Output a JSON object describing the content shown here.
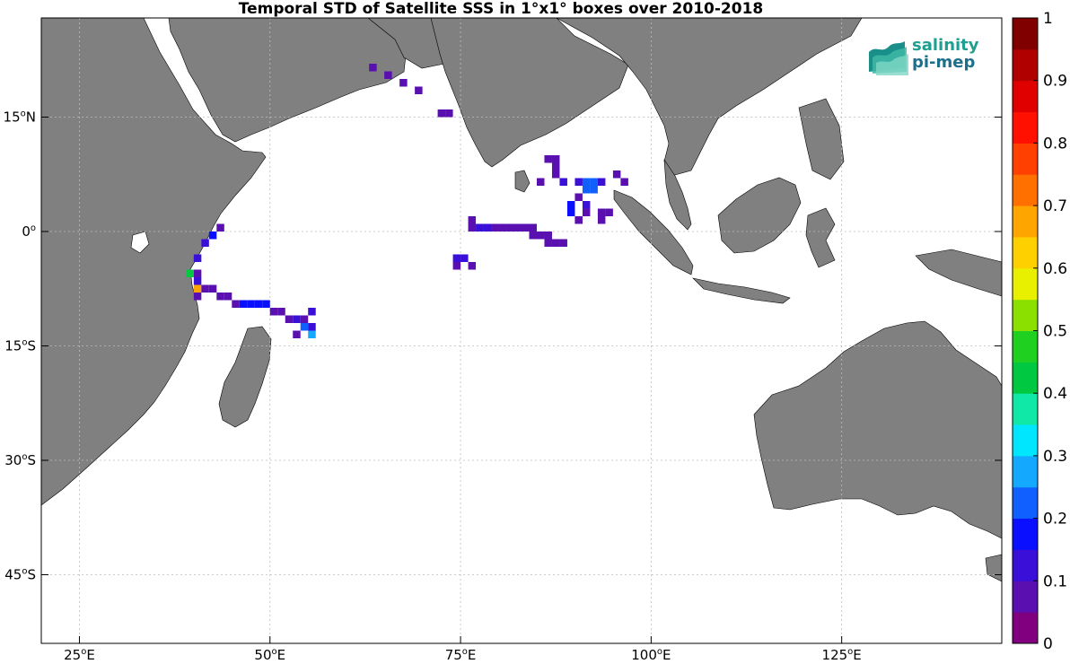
{
  "title": "Temporal STD of Satellite SSS in 1°x1° boxes over 2010-2018",
  "logo": {
    "line1": "salinity",
    "line2": "pi-mep"
  },
  "colors": {
    "land": "#808080",
    "ocean": "#ffffff",
    "grid": "#c0c0c0"
  },
  "axes": {
    "x_ticks": [
      {
        "deg": "25",
        "hemi": "E",
        "lon": 25
      },
      {
        "deg": "50",
        "hemi": "E",
        "lon": 50
      },
      {
        "deg": "75",
        "hemi": "E",
        "lon": 75
      },
      {
        "deg": "100",
        "hemi": "E",
        "lon": 100
      },
      {
        "deg": "125",
        "hemi": "E",
        "lon": 125
      }
    ],
    "y_ticks": [
      {
        "deg": "15",
        "hemi": "N",
        "lat": 15
      },
      {
        "deg": "0",
        "hemi": "",
        "lat": 0
      },
      {
        "deg": "15",
        "hemi": "S",
        "lat": -15
      },
      {
        "deg": "30",
        "hemi": "S",
        "lat": -30
      },
      {
        "deg": "45",
        "hemi": "S",
        "lat": -45
      }
    ],
    "lon_range": [
      20,
      146
    ],
    "lat_range": [
      -54,
      28
    ]
  },
  "colorbar": {
    "range": [
      0,
      1
    ],
    "ticks": [
      "0",
      "0.1",
      "0.2",
      "0.3",
      "0.4",
      "0.5",
      "0.6",
      "0.7",
      "0.8",
      "0.9",
      "1"
    ],
    "colors": [
      "#800080",
      "#5a0fb0",
      "#3a10d8",
      "#0a10ff",
      "#1060ff",
      "#14a8ff",
      "#00e6ff",
      "#10e8a8",
      "#00c840",
      "#20d020",
      "#8ce000",
      "#e8f000",
      "#ffd000",
      "#ffa500",
      "#ff7000",
      "#ff4000",
      "#ff1000",
      "#e00000",
      "#b00000",
      "#800000"
    ]
  },
  "chart_data": {
    "type": "heatmap",
    "title": "Temporal STD of Satellite SSS in 1°x1° boxes over 2010-2018",
    "value_range": [
      0,
      1
    ],
    "x_label": "",
    "y_label": "",
    "cell_size_deg": 1,
    "tracks": [
      {
        "lon": 63.5,
        "lat": 21.5,
        "std": 0.05
      },
      {
        "lon": 65.5,
        "lat": 20.5,
        "std": 0.05
      },
      {
        "lon": 67.5,
        "lat": 19.5,
        "std": 0.05
      },
      {
        "lon": 69.5,
        "lat": 18.5,
        "std": 0.05
      },
      {
        "lon": 72.5,
        "lat": 15.5,
        "std": 0.05
      },
      {
        "lon": 73.5,
        "lat": 15.5,
        "std": 0.05
      },
      {
        "lon": 86.5,
        "lat": 9.5,
        "std": 0.05
      },
      {
        "lon": 87.5,
        "lat": 9.5,
        "std": 0.05
      },
      {
        "lon": 87.5,
        "lat": 8.5,
        "std": 0.05
      },
      {
        "lon": 87.5,
        "lat": 7.5,
        "std": 0.05
      },
      {
        "lon": 85.5,
        "lat": 6.5,
        "std": 0.05
      },
      {
        "lon": 88.5,
        "lat": 6.5,
        "std": 0.12
      },
      {
        "lon": 90.5,
        "lat": 6.5,
        "std": 0.12
      },
      {
        "lon": 91.5,
        "lat": 6.5,
        "std": 0.2
      },
      {
        "lon": 92.5,
        "lat": 6.5,
        "std": 0.2
      },
      {
        "lon": 93.5,
        "lat": 6.5,
        "std": 0.1
      },
      {
        "lon": 95.5,
        "lat": 7.5,
        "std": 0.05
      },
      {
        "lon": 96.5,
        "lat": 6.5,
        "std": 0.05
      },
      {
        "lon": 91.5,
        "lat": 5.5,
        "std": 0.22
      },
      {
        "lon": 92.5,
        "lat": 5.5,
        "std": 0.2
      },
      {
        "lon": 90.5,
        "lat": 4.5,
        "std": 0.05
      },
      {
        "lon": 89.5,
        "lat": 3.5,
        "std": 0.18
      },
      {
        "lon": 91.5,
        "lat": 3.5,
        "std": 0.12
      },
      {
        "lon": 89.5,
        "lat": 2.5,
        "std": 0.18
      },
      {
        "lon": 90.5,
        "lat": 1.5,
        "std": 0.05
      },
      {
        "lon": 91.5,
        "lat": 2.5,
        "std": 0.08
      },
      {
        "lon": 93.5,
        "lat": 2.5,
        "std": 0.05
      },
      {
        "lon": 94.5,
        "lat": 2.5,
        "std": 0.05
      },
      {
        "lon": 90.5,
        "lat": 1.5,
        "std": 0.05
      },
      {
        "lon": 93.5,
        "lat": 1.5,
        "std": 0.05
      },
      {
        "lon": 76.5,
        "lat": 1.5,
        "std": 0.05
      },
      {
        "lon": 76.5,
        "lat": 0.5,
        "std": 0.05
      },
      {
        "lon": 77.5,
        "lat": 0.5,
        "std": 0.12
      },
      {
        "lon": 78.5,
        "lat": 0.5,
        "std": 0.12
      },
      {
        "lon": 79.5,
        "lat": 0.5,
        "std": 0.05
      },
      {
        "lon": 80.5,
        "lat": 0.5,
        "std": 0.05
      },
      {
        "lon": 81.5,
        "lat": 0.5,
        "std": 0.05
      },
      {
        "lon": 82.5,
        "lat": 0.5,
        "std": 0.05
      },
      {
        "lon": 83.5,
        "lat": 0.5,
        "std": 0.05
      },
      {
        "lon": 84.5,
        "lat": 0.5,
        "std": 0.05
      },
      {
        "lon": 84.5,
        "lat": -0.5,
        "std": 0.05
      },
      {
        "lon": 85.5,
        "lat": -0.5,
        "std": 0.05
      },
      {
        "lon": 86.5,
        "lat": -0.5,
        "std": 0.05
      },
      {
        "lon": 86.5,
        "lat": -1.5,
        "std": 0.05
      },
      {
        "lon": 87.5,
        "lat": -1.5,
        "std": 0.05
      },
      {
        "lon": 88.5,
        "lat": -1.5,
        "std": 0.05
      },
      {
        "lon": 74.5,
        "lat": -3.5,
        "std": 0.1
      },
      {
        "lon": 75.5,
        "lat": -3.5,
        "std": 0.1
      },
      {
        "lon": 74.5,
        "lat": -4.5,
        "std": 0.05
      },
      {
        "lon": 76.5,
        "lat": -4.5,
        "std": 0.05
      },
      {
        "lon": 43.5,
        "lat": 0.5,
        "std": 0.05
      },
      {
        "lon": 42.5,
        "lat": -0.5,
        "std": 0.15
      },
      {
        "lon": 41.5,
        "lat": -1.5,
        "std": 0.1
      },
      {
        "lon": 40.5,
        "lat": -3.5,
        "std": 0.1
      },
      {
        "lon": 39.5,
        "lat": -5.5,
        "std": 0.4
      },
      {
        "lon": 40.5,
        "lat": -5.5,
        "std": 0.05
      },
      {
        "lon": 40.5,
        "lat": -6.5,
        "std": 0.1
      },
      {
        "lon": 40.5,
        "lat": -7.5,
        "std": 0.68
      },
      {
        "lon": 40.5,
        "lat": -8.5,
        "std": 0.05
      },
      {
        "lon": 41.5,
        "lat": -7.5,
        "std": 0.05
      },
      {
        "lon": 42.5,
        "lat": -7.5,
        "std": 0.05
      },
      {
        "lon": 43.5,
        "lat": -8.5,
        "std": 0.05
      },
      {
        "lon": 44.5,
        "lat": -8.5,
        "std": 0.05
      },
      {
        "lon": 45.5,
        "lat": -9.5,
        "std": 0.05
      },
      {
        "lon": 46.5,
        "lat": -9.5,
        "std": 0.15
      },
      {
        "lon": 47.5,
        "lat": -9.5,
        "std": 0.15
      },
      {
        "lon": 48.5,
        "lat": -9.5,
        "std": 0.15
      },
      {
        "lon": 49.5,
        "lat": -9.5,
        "std": 0.15
      },
      {
        "lon": 50.5,
        "lat": -10.5,
        "std": 0.05
      },
      {
        "lon": 51.5,
        "lat": -10.5,
        "std": 0.05
      },
      {
        "lon": 52.5,
        "lat": -11.5,
        "std": 0.05
      },
      {
        "lon": 53.5,
        "lat": -11.5,
        "std": 0.1
      },
      {
        "lon": 54.5,
        "lat": -11.5,
        "std": 0.05
      },
      {
        "lon": 55.5,
        "lat": -10.5,
        "std": 0.1
      },
      {
        "lon": 54.5,
        "lat": -12.5,
        "std": 0.2
      },
      {
        "lon": 55.5,
        "lat": -12.5,
        "std": 0.1
      },
      {
        "lon": 53.5,
        "lat": -13.5,
        "std": 0.05
      },
      {
        "lon": 55.5,
        "lat": -13.5,
        "std": 0.25
      }
    ]
  }
}
